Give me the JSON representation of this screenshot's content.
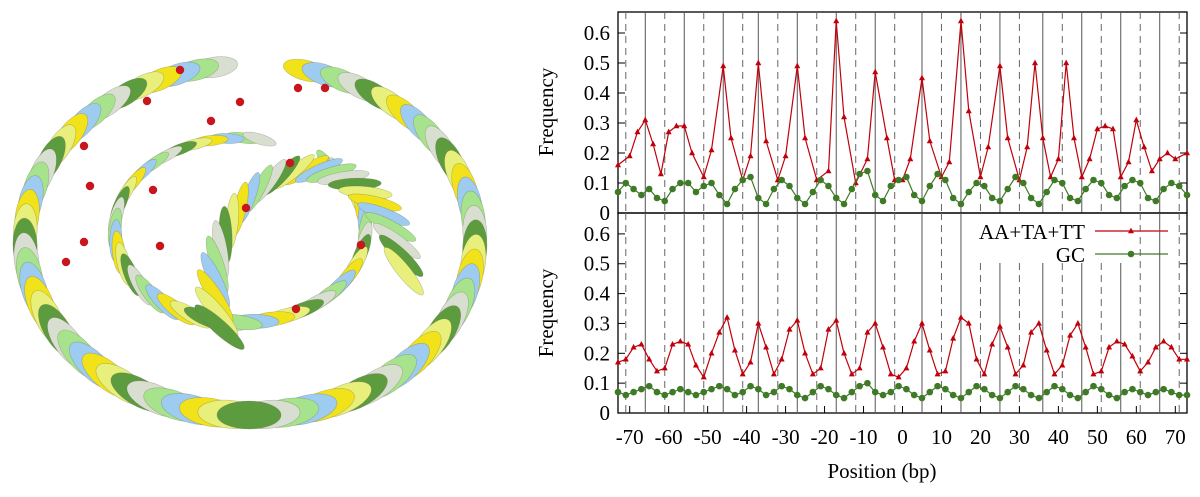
{
  "colors": {
    "series_at": "#c0000a",
    "series_gc": "#3f7a26",
    "ellipse_palette": [
      "#f2e21a",
      "#9ecbf0",
      "#a6e38c",
      "#d9dfd0",
      "#5d9c3e",
      "#e8ef7a"
    ],
    "phosphate": "#c8161e"
  },
  "chart_data": [
    {
      "type": "line",
      "panel": "top",
      "title": "",
      "xlabel": "",
      "ylabel": "Frequency",
      "xlim": [
        -73,
        73
      ],
      "ylim": [
        0,
        0.67
      ],
      "yticks": [
        0,
        0.1,
        0.2,
        0.3,
        0.4,
        0.5,
        0.6
      ],
      "grid": false,
      "vlines_solid": [
        -66,
        -56,
        -46,
        -37,
        -27,
        -17,
        -7,
        5,
        15,
        25,
        36,
        46,
        56,
        66
      ],
      "vlines_dashed": [
        -71,
        -61,
        -51,
        -41,
        -32,
        -22,
        -12,
        -2,
        10,
        20,
        30,
        41,
        51,
        61,
        71
      ],
      "series": [
        {
          "name": "AA+TA+TT",
          "marker": "triangle",
          "x": [
            -73,
            -70,
            -68,
            -66,
            -64,
            -62,
            -60,
            -58,
            -56,
            -54,
            -51,
            -49,
            -46,
            -44,
            -41,
            -39,
            -37,
            -35,
            -32,
            -30,
            -27,
            -25,
            -22,
            -19,
            -17,
            -15,
            -12,
            -9,
            -7,
            -4,
            -2,
            0,
            2,
            5,
            7,
            10,
            12,
            15,
            17,
            20,
            22,
            25,
            27,
            30,
            32,
            34,
            36,
            38,
            40,
            42,
            44,
            46,
            48,
            50,
            52,
            54,
            56,
            58,
            60,
            62,
            64,
            66,
            68,
            70,
            73
          ],
          "values": [
            0.16,
            0.19,
            0.27,
            0.31,
            0.23,
            0.13,
            0.27,
            0.29,
            0.29,
            0.2,
            0.12,
            0.21,
            0.49,
            0.25,
            0.11,
            0.19,
            0.5,
            0.24,
            0.11,
            0.19,
            0.49,
            0.25,
            0.11,
            0.14,
            0.64,
            0.32,
            0.1,
            0.18,
            0.47,
            0.25,
            0.11,
            0.11,
            0.18,
            0.45,
            0.24,
            0.12,
            0.17,
            0.64,
            0.34,
            0.12,
            0.22,
            0.49,
            0.25,
            0.11,
            0.22,
            0.5,
            0.25,
            0.12,
            0.18,
            0.5,
            0.25,
            0.12,
            0.18,
            0.28,
            0.29,
            0.28,
            0.12,
            0.17,
            0.31,
            0.22,
            0.14,
            0.18,
            0.2,
            0.18,
            0.2
          ]
        },
        {
          "name": "GC",
          "marker": "circle",
          "x": [
            -73,
            -71,
            -69,
            -67,
            -65,
            -63,
            -61,
            -59,
            -57,
            -55,
            -53,
            -51,
            -49,
            -47,
            -45,
            -43,
            -41,
            -39,
            -37,
            -35,
            -33,
            -31,
            -29,
            -27,
            -25,
            -23,
            -21,
            -19,
            -17,
            -15,
            -13,
            -11,
            -9,
            -7,
            -5,
            -3,
            -1,
            1,
            3,
            5,
            7,
            9,
            11,
            13,
            15,
            17,
            19,
            21,
            23,
            25,
            27,
            29,
            31,
            33,
            35,
            37,
            39,
            41,
            43,
            45,
            47,
            49,
            51,
            53,
            55,
            57,
            59,
            61,
            63,
            65,
            67,
            69,
            71,
            73
          ],
          "values": [
            0.07,
            0.1,
            0.08,
            0.06,
            0.08,
            0.05,
            0.04,
            0.08,
            0.1,
            0.1,
            0.07,
            0.09,
            0.1,
            0.06,
            0.03,
            0.08,
            0.11,
            0.12,
            0.05,
            0.03,
            0.08,
            0.11,
            0.09,
            0.05,
            0.03,
            0.07,
            0.11,
            0.09,
            0.05,
            0.03,
            0.08,
            0.13,
            0.14,
            0.06,
            0.04,
            0.09,
            0.11,
            0.12,
            0.06,
            0.04,
            0.09,
            0.13,
            0.11,
            0.05,
            0.03,
            0.07,
            0.1,
            0.09,
            0.05,
            0.04,
            0.08,
            0.12,
            0.1,
            0.05,
            0.03,
            0.07,
            0.11,
            0.1,
            0.05,
            0.04,
            0.08,
            0.11,
            0.1,
            0.06,
            0.05,
            0.09,
            0.11,
            0.1,
            0.05,
            0.04,
            0.08,
            0.1,
            0.09,
            0.06
          ]
        }
      ]
    },
    {
      "type": "line",
      "panel": "bottom",
      "title": "",
      "xlabel": "Position (bp)",
      "ylabel": "Frequency",
      "xlim": [
        -73,
        73
      ],
      "ylim": [
        0,
        0.67
      ],
      "yticks": [
        0,
        0.1,
        0.2,
        0.3,
        0.4,
        0.5,
        0.6
      ],
      "xticks": [
        -70,
        -60,
        -50,
        -40,
        -30,
        -20,
        -10,
        0,
        10,
        20,
        30,
        40,
        50,
        60,
        70
      ],
      "grid": false,
      "legend": "top-right",
      "vlines_solid": [
        -66,
        -56,
        -46,
        -37,
        -27,
        -17,
        -7,
        5,
        15,
        25,
        36,
        46,
        56,
        66
      ],
      "vlines_dashed": [
        -71,
        -61,
        -51,
        -41,
        -32,
        -22,
        -12,
        -2,
        10,
        20,
        30,
        41,
        51,
        61,
        71
      ],
      "series": [
        {
          "name": "AA+TA+TT",
          "marker": "triangle",
          "x": [
            -73,
            -71,
            -69,
            -67,
            -65,
            -63,
            -61,
            -59,
            -57,
            -55,
            -53,
            -51,
            -49,
            -47,
            -45,
            -43,
            -41,
            -39,
            -37,
            -35,
            -33,
            -31,
            -29,
            -27,
            -25,
            -23,
            -21,
            -19,
            -17,
            -15,
            -13,
            -11,
            -9,
            -7,
            -5,
            -3,
            -1,
            1,
            3,
            5,
            7,
            9,
            11,
            13,
            15,
            17,
            19,
            21,
            23,
            25,
            27,
            29,
            31,
            33,
            35,
            37,
            39,
            41,
            43,
            45,
            47,
            49,
            51,
            53,
            55,
            57,
            59,
            61,
            63,
            65,
            67,
            69,
            71,
            73
          ],
          "values": [
            0.17,
            0.18,
            0.22,
            0.23,
            0.18,
            0.14,
            0.15,
            0.23,
            0.24,
            0.23,
            0.16,
            0.12,
            0.2,
            0.27,
            0.32,
            0.21,
            0.13,
            0.17,
            0.3,
            0.22,
            0.13,
            0.18,
            0.28,
            0.31,
            0.2,
            0.13,
            0.15,
            0.28,
            0.31,
            0.2,
            0.13,
            0.15,
            0.27,
            0.3,
            0.22,
            0.13,
            0.12,
            0.15,
            0.24,
            0.3,
            0.21,
            0.13,
            0.14,
            0.25,
            0.32,
            0.3,
            0.18,
            0.13,
            0.23,
            0.29,
            0.22,
            0.13,
            0.16,
            0.27,
            0.3,
            0.21,
            0.13,
            0.16,
            0.26,
            0.3,
            0.22,
            0.13,
            0.14,
            0.22,
            0.24,
            0.23,
            0.19,
            0.14,
            0.17,
            0.22,
            0.24,
            0.22,
            0.18,
            0.18
          ]
        },
        {
          "name": "GC",
          "marker": "circle",
          "x": [
            -73,
            -71,
            -69,
            -67,
            -65,
            -63,
            -61,
            -59,
            -57,
            -55,
            -53,
            -51,
            -49,
            -47,
            -45,
            -43,
            -41,
            -39,
            -37,
            -35,
            -33,
            -31,
            -29,
            -27,
            -25,
            -23,
            -21,
            -19,
            -17,
            -15,
            -13,
            -11,
            -9,
            -7,
            -5,
            -3,
            -1,
            1,
            3,
            5,
            7,
            9,
            11,
            13,
            15,
            17,
            19,
            21,
            23,
            25,
            27,
            29,
            31,
            33,
            35,
            37,
            39,
            41,
            43,
            45,
            47,
            49,
            51,
            53,
            55,
            57,
            59,
            61,
            63,
            65,
            67,
            69,
            71,
            73
          ],
          "values": [
            0.07,
            0.06,
            0.07,
            0.08,
            0.09,
            0.07,
            0.06,
            0.07,
            0.08,
            0.07,
            0.06,
            0.07,
            0.08,
            0.09,
            0.08,
            0.06,
            0.07,
            0.09,
            0.08,
            0.06,
            0.07,
            0.09,
            0.08,
            0.06,
            0.05,
            0.07,
            0.09,
            0.08,
            0.06,
            0.05,
            0.07,
            0.09,
            0.1,
            0.07,
            0.06,
            0.07,
            0.09,
            0.08,
            0.06,
            0.05,
            0.07,
            0.09,
            0.08,
            0.06,
            0.05,
            0.07,
            0.09,
            0.08,
            0.06,
            0.05,
            0.07,
            0.09,
            0.08,
            0.06,
            0.05,
            0.07,
            0.09,
            0.08,
            0.06,
            0.05,
            0.07,
            0.09,
            0.08,
            0.06,
            0.05,
            0.07,
            0.08,
            0.07,
            0.06,
            0.07,
            0.08,
            0.07,
            0.06,
            0.06
          ]
        }
      ]
    }
  ]
}
